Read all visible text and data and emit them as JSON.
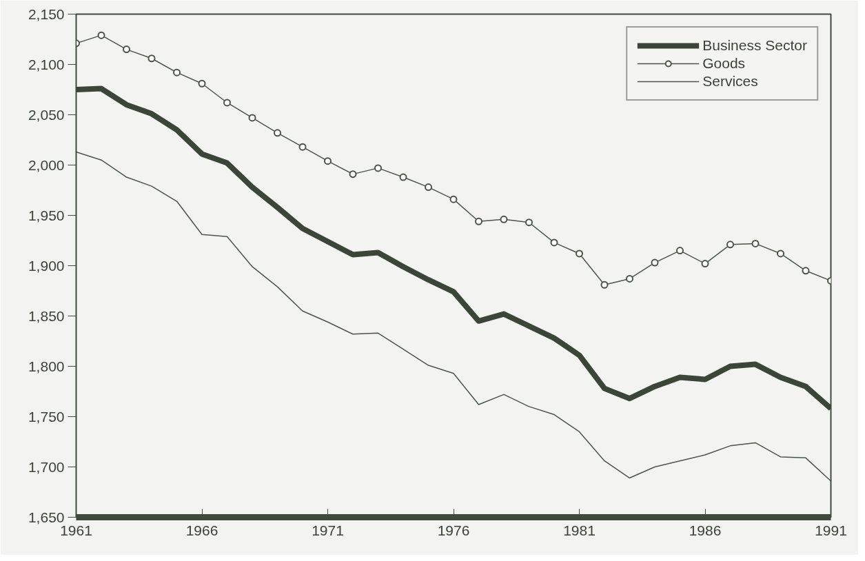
{
  "chart_data": {
    "type": "line",
    "x": [
      1961,
      1962,
      1963,
      1964,
      1965,
      1966,
      1967,
      1968,
      1969,
      1970,
      1971,
      1972,
      1973,
      1974,
      1975,
      1976,
      1977,
      1978,
      1979,
      1980,
      1981,
      1982,
      1983,
      1984,
      1985,
      1986,
      1987,
      1988,
      1989,
      1990,
      1991
    ],
    "series": [
      {
        "name": "Business Sector",
        "color": "#3b4538",
        "marker": "none",
        "values": [
          2075,
          2076,
          2060,
          2051,
          2035,
          2011,
          2002,
          1978,
          1958,
          1937,
          1924,
          1911,
          1913,
          1899,
          1886,
          1874,
          1845,
          1852,
          1840,
          1828,
          1811,
          1778,
          1768,
          1780,
          1789,
          1787,
          1800,
          1802,
          1789,
          1780,
          1758
        ]
      },
      {
        "name": "Goods",
        "color": "#4a5548",
        "marker": "circle",
        "values": [
          2121,
          2129,
          2115,
          2106,
          2092,
          2081,
          2062,
          2047,
          2032,
          2018,
          2004,
          1991,
          1997,
          1988,
          1978,
          1966,
          1944,
          1946,
          1943,
          1923,
          1912,
          1881,
          1887,
          1903,
          1915,
          1902,
          1921,
          1922,
          1912,
          1895,
          1885
        ]
      },
      {
        "name": "Services",
        "color": "#4a5548",
        "marker": "none",
        "values": [
          2013,
          2005,
          1988,
          1979,
          1964,
          1931,
          1929,
          1899,
          1879,
          1855,
          1844,
          1832,
          1833,
          1817,
          1801,
          1793,
          1762,
          1772,
          1760,
          1752,
          1735,
          1706,
          1689,
          1700,
          1706,
          1712,
          1721,
          1724,
          1710,
          1709,
          1686
        ]
      }
    ],
    "xlim": [
      1961,
      1991
    ],
    "xticks": [
      1961,
      1966,
      1971,
      1976,
      1981,
      1986,
      1991
    ],
    "ylim": [
      1650,
      2150
    ],
    "yticks": [
      {
        "value": 1650,
        "label": "1,650"
      },
      {
        "value": 1700,
        "label": "1,700"
      },
      {
        "value": 1750,
        "label": "1,750"
      },
      {
        "value": 1800,
        "label": "1,800"
      },
      {
        "value": 1850,
        "label": "1,850"
      },
      {
        "value": 1900,
        "label": "1,900"
      },
      {
        "value": 1950,
        "label": "1,950"
      },
      {
        "value": 2000,
        "label": "2,000"
      },
      {
        "value": 2050,
        "label": "2,050"
      },
      {
        "value": 2100,
        "label": "2,100"
      },
      {
        "value": 2150,
        "label": "2,150"
      }
    ],
    "grid": false,
    "legend": "top right"
  }
}
